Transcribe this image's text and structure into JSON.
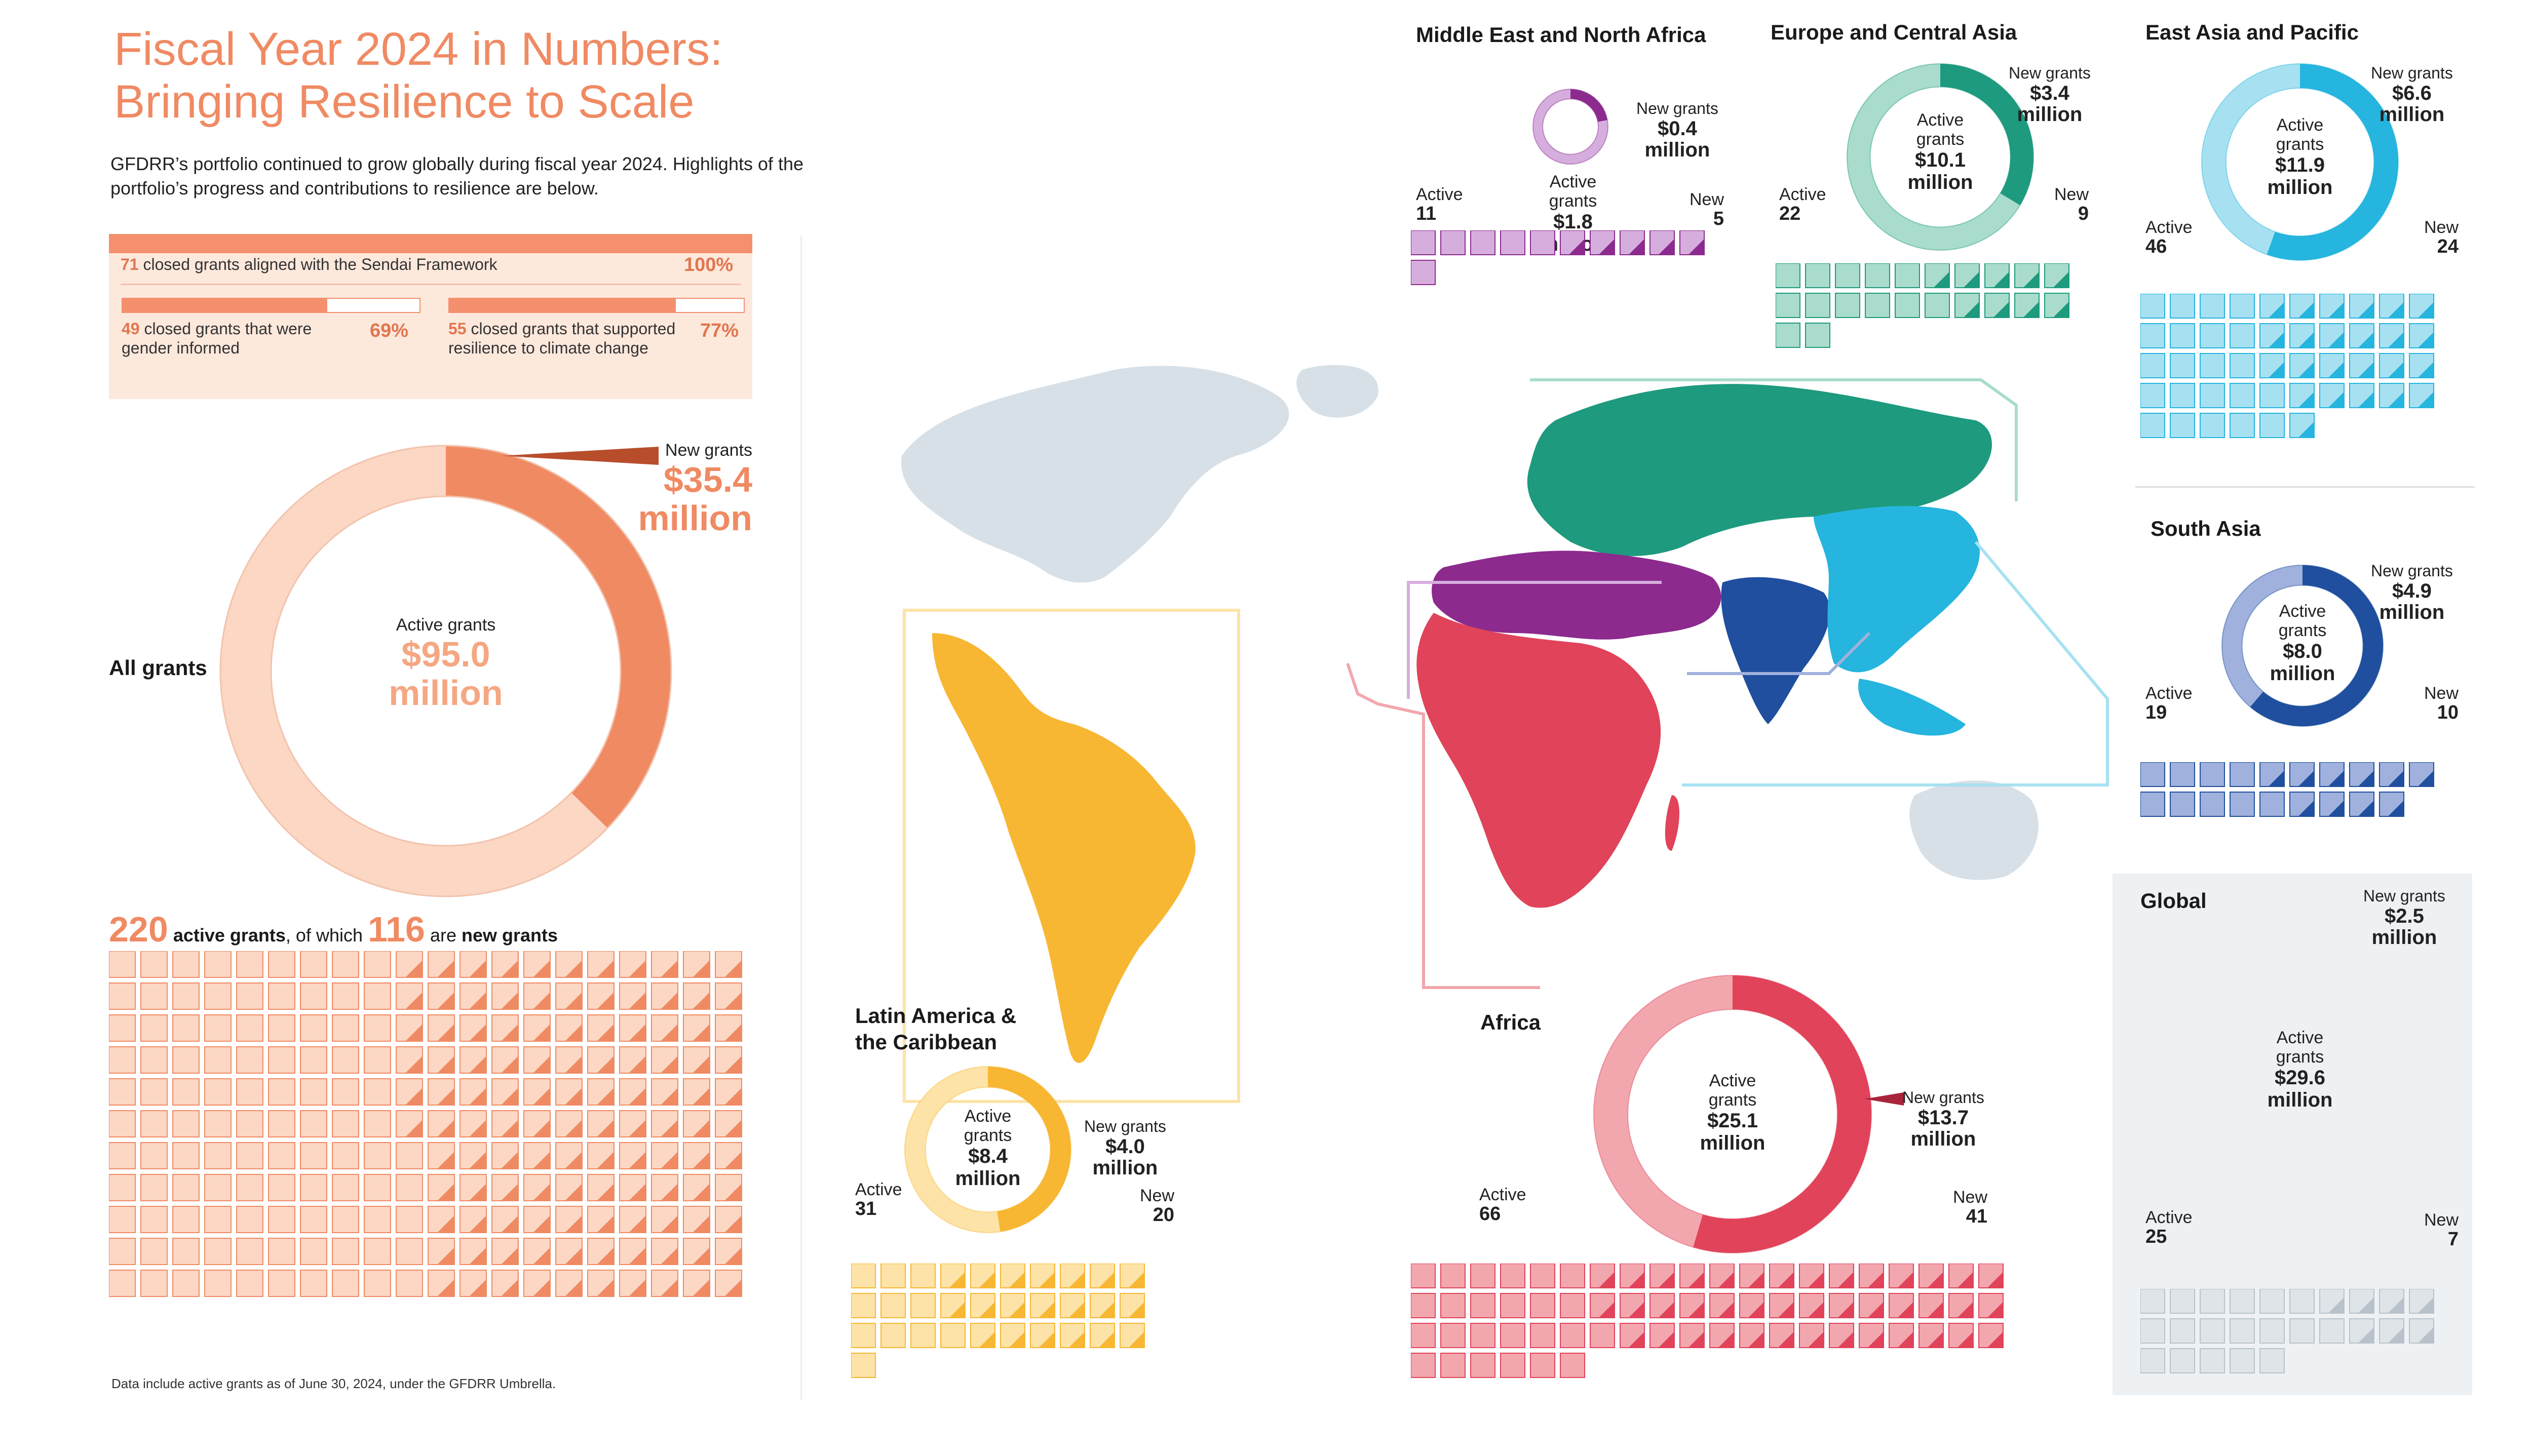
{
  "title_line1": "Fiscal Year 2024 in Numbers:",
  "title_line2": "Bringing Resilience to Scale",
  "intro": "GFDRR’s portfolio continued to grow globally during fiscal year 2024. Highlights of the portfolio’s progress and contributions to resilience are below.",
  "sendai": {
    "closed_num": "71",
    "closed_text": "closed grants aligned with the Sendai Framework",
    "closed_pct": "100%",
    "gender_num": "49",
    "gender_text_1": "closed grants that were",
    "gender_text_2": "gender informed",
    "gender_pct": "69%",
    "climate_num": "55",
    "climate_text_1": "closed grants that supported",
    "climate_text_2": "resilience to climate change",
    "climate_pct": "77%"
  },
  "all_grants": {
    "label": "All grants",
    "active_label": "Active grants",
    "active_value": "$95.0",
    "active_unit": "million",
    "new_label": "New grants",
    "new_value": "$35.4",
    "new_unit": "million",
    "count_active": "220",
    "count_active_text": "active grants",
    "count_mid": ", of which",
    "count_new": "116",
    "count_new_pre": "are",
    "count_new_text": "new grants"
  },
  "footnote": "Data include active grants as of June 30, 2024, under the GFDRR Umbrella.",
  "colors": {
    "all_dark": "#f08a63",
    "all_light": "#fbd7c4",
    "lac_dark": "#f7b733",
    "lac_light": "#fde3a7",
    "africa_dark": "#e0435a",
    "africa_light": "#f2a7ae",
    "mena_dark": "#8c2a8e",
    "mena_light": "#d6aede",
    "eca_dark": "#1e9a7e",
    "eca_light": "#a9dccd",
    "eap_dark": "#25b5de",
    "eap_light": "#a7e1f1",
    "sa_dark": "#1f4f9e",
    "sa_light": "#9fb1dc",
    "global_dark": "#b9c2ca",
    "global_light": "#dfe4e8",
    "map_base": "#d7e0e7"
  },
  "regions": {
    "mena": {
      "title": "Middle East and North Africa",
      "active_label": "Active",
      "active_grants_word": "grants",
      "active_value": "$1.8",
      "unit": "million",
      "new_label": "New grants",
      "new_value": "$0.4",
      "active_tag": "Active",
      "active_count": "11",
      "new_tag": "New",
      "new_count": "5"
    },
    "eca": {
      "title": "Europe and Central Asia",
      "active_label": "Active",
      "active_grants_word": "grants",
      "active_value": "$10.1",
      "unit": "million",
      "new_label": "New grants",
      "new_value": "$3.4",
      "active_tag": "Active",
      "active_count": "22",
      "new_tag": "New",
      "new_count": "9"
    },
    "eap": {
      "title": "East Asia and Pacific",
      "active_label": "Active",
      "active_grants_word": "grants",
      "active_value": "$11.9",
      "unit": "million",
      "new_label": "New grants",
      "new_value": "$6.6",
      "active_tag": "Active",
      "active_count": "46",
      "new_tag": "New",
      "new_count": "24"
    },
    "sa": {
      "title": "South Asia",
      "active_label": "Active",
      "active_grants_word": "grants",
      "active_value": "$8.0",
      "unit": "million",
      "new_label": "New grants",
      "new_value": "$4.9",
      "active_tag": "Active",
      "active_count": "19",
      "new_tag": "New",
      "new_count": "10"
    },
    "lac": {
      "title_1": "Latin America &",
      "title_2": "the Caribbean",
      "active_label": "Active",
      "active_grants_word": "grants",
      "active_value": "$8.4",
      "unit": "million",
      "new_label": "New grants",
      "new_value": "$4.0",
      "active_tag": "Active",
      "active_count": "31",
      "new_tag": "New",
      "new_count": "20"
    },
    "africa": {
      "title": "Africa",
      "active_label": "Active",
      "active_grants_word": "grants",
      "active_value": "$25.1",
      "unit": "million",
      "new_label": "New grants",
      "new_value": "$13.7",
      "active_tag": "Active",
      "active_count": "66",
      "new_tag": "New",
      "new_count": "41"
    },
    "global": {
      "title": "Global",
      "active_label": "Active",
      "active_grants_word": "grants",
      "active_value": "$29.6",
      "unit": "million",
      "new_label": "New grants",
      "new_value": "$2.5",
      "active_tag": "Active",
      "active_count": "25",
      "new_tag": "New",
      "new_count": "7"
    }
  },
  "chart_data": [
    {
      "type": "pie",
      "title": "All grants",
      "series": [
        {
          "name": "New grants",
          "values": [
            35.4
          ]
        },
        {
          "name": "Active grants",
          "values": [
            95.0
          ]
        }
      ],
      "unit": "million USD"
    },
    {
      "type": "pie",
      "title": "Middle East and North Africa",
      "active": 1.8,
      "new": 0.4,
      "active_count": 11,
      "new_count": 5
    },
    {
      "type": "pie",
      "title": "Europe and Central Asia",
      "active": 10.1,
      "new": 3.4,
      "active_count": 22,
      "new_count": 9
    },
    {
      "type": "pie",
      "title": "East Asia and Pacific",
      "active": 11.9,
      "new": 6.6,
      "active_count": 46,
      "new_count": 24
    },
    {
      "type": "pie",
      "title": "South Asia",
      "active": 8.0,
      "new": 4.9,
      "active_count": 19,
      "new_count": 10
    },
    {
      "type": "pie",
      "title": "Latin America & the Caribbean",
      "active": 8.4,
      "new": 4.0,
      "active_count": 31,
      "new_count": 20
    },
    {
      "type": "pie",
      "title": "Africa",
      "active": 25.1,
      "new": 13.7,
      "active_count": 66,
      "new_count": 41
    },
    {
      "type": "pie",
      "title": "Global",
      "active": 29.6,
      "new": 2.5,
      "active_count": 25,
      "new_count": 7
    },
    {
      "type": "bar",
      "title": "Sendai",
      "categories": [
        "Sendai Framework",
        "gender informed",
        "resilience to climate change"
      ],
      "values": [
        100,
        69,
        77
      ],
      "counts": [
        71,
        49,
        55
      ]
    }
  ]
}
